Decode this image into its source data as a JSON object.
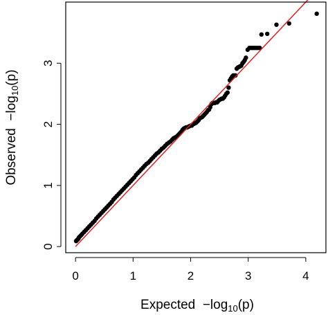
{
  "chart_data": {
    "type": "scatter",
    "title": "",
    "xlabel": {
      "prefix": "Expected  ",
      "main": "−log",
      "sub": "10",
      "suffix": "(p)"
    },
    "ylabel": {
      "prefix": "Observed  ",
      "main": "−log",
      "sub": "10",
      "suffix": "(p)"
    },
    "xlim": [
      -0.17,
      4.35
    ],
    "ylim": [
      -0.1,
      4.0
    ],
    "xticks": [
      0,
      1,
      2,
      3,
      4
    ],
    "yticks": [
      0,
      1,
      2,
      3
    ],
    "xtick_labels": [
      "0",
      "1",
      "2",
      "3",
      "4"
    ],
    "ytick_labels": [
      "0",
      "1",
      "2",
      "3"
    ],
    "grid": false,
    "legend": "none",
    "colors": {
      "points": "#000000",
      "reference_line": "#e02020",
      "axes": "#000000"
    },
    "reference_line": {
      "x": [
        0,
        4.35
      ],
      "y": [
        0,
        4.35
      ]
    },
    "series": [
      {
        "x": [
          4.19,
          3.71,
          3.49,
          3.33,
          3.23,
          3.2,
          3.17,
          3.14,
          3.11,
          3.08,
          3.05,
          3.02,
          2.99,
          2.96,
          2.94,
          2.92,
          2.9,
          2.88,
          2.86,
          2.84,
          2.82,
          2.8,
          2.78,
          2.76,
          2.74,
          2.72,
          2.7,
          2.68,
          2.66,
          2.64,
          2.62,
          2.6,
          2.58,
          2.56,
          2.54,
          2.52,
          2.5,
          2.48,
          2.46,
          2.44,
          2.42,
          2.4,
          2.38,
          2.36,
          2.34,
          2.32,
          2.3,
          2.28,
          2.26,
          2.24,
          2.22,
          2.2,
          2.18,
          2.16,
          2.14,
          2.12,
          2.1,
          2.08,
          2.06,
          2.04,
          2.02,
          2.0,
          1.98,
          1.96,
          1.94,
          1.92,
          1.9,
          1.88,
          1.86,
          1.84,
          1.82,
          1.8,
          1.78,
          1.76,
          1.74,
          1.72,
          1.7,
          1.68,
          1.65,
          1.62,
          1.59,
          1.56,
          1.53,
          1.5,
          1.47,
          1.44,
          1.41,
          1.38,
          1.35,
          1.32,
          1.29,
          1.26,
          1.23,
          1.2,
          1.17,
          1.14,
          1.11,
          1.08,
          1.05,
          1.02,
          0.99,
          0.96,
          0.93,
          0.9,
          0.87,
          0.84,
          0.81,
          0.78,
          0.75,
          0.72,
          0.69,
          0.66,
          0.63,
          0.6,
          0.57,
          0.54,
          0.51,
          0.48,
          0.45,
          0.42,
          0.39,
          0.36,
          0.33,
          0.3,
          0.27,
          0.24,
          0.21,
          0.18,
          0.15,
          0.12,
          0.1,
          0.08,
          0.06,
          0.05,
          0.04,
          0.03,
          0.02,
          0.01
        ],
        "y": [
          3.81,
          3.65,
          3.63,
          3.48,
          3.47,
          3.25,
          3.25,
          3.25,
          3.25,
          3.25,
          3.25,
          3.25,
          3.22,
          3.09,
          3.05,
          3.02,
          3.0,
          2.96,
          2.95,
          2.94,
          2.93,
          2.91,
          2.8,
          2.8,
          2.8,
          2.78,
          2.75,
          2.72,
          2.6,
          2.52,
          2.5,
          2.47,
          2.44,
          2.42,
          2.42,
          2.41,
          2.4,
          2.38,
          2.36,
          2.36,
          2.35,
          2.35,
          2.35,
          2.33,
          2.28,
          2.24,
          2.23,
          2.2,
          2.18,
          2.16,
          2.14,
          2.12,
          2.11,
          2.1,
          2.07,
          2.05,
          2.03,
          2.02,
          2.01,
          2.0,
          1.98,
          1.98,
          1.97,
          1.96,
          1.95,
          1.95,
          1.94,
          1.93,
          1.91,
          1.88,
          1.86,
          1.84,
          1.82,
          1.8,
          1.79,
          1.78,
          1.77,
          1.75,
          1.72,
          1.7,
          1.68,
          1.65,
          1.62,
          1.6,
          1.57,
          1.54,
          1.52,
          1.49,
          1.46,
          1.43,
          1.4,
          1.37,
          1.35,
          1.32,
          1.29,
          1.26,
          1.23,
          1.2,
          1.17,
          1.13,
          1.1,
          1.07,
          1.04,
          1.01,
          0.98,
          0.95,
          0.92,
          0.89,
          0.86,
          0.83,
          0.8,
          0.77,
          0.73,
          0.7,
          0.67,
          0.64,
          0.61,
          0.58,
          0.55,
          0.52,
          0.49,
          0.46,
          0.42,
          0.39,
          0.36,
          0.33,
          0.3,
          0.27,
          0.24,
          0.21,
          0.19,
          0.17,
          0.15,
          0.13,
          0.12,
          0.11,
          0.1,
          0.09
        ]
      }
    ]
  }
}
